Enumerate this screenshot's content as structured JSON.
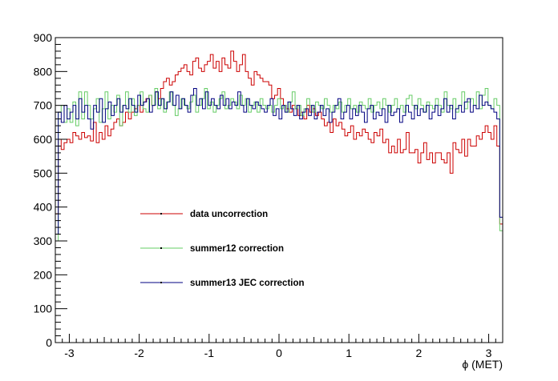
{
  "chart_data": {
    "type": "line",
    "style": "step-histogram",
    "title": "",
    "xlabel": "ϕ (MET)",
    "ylabel": "",
    "xlim": [
      -3.2,
      3.2
    ],
    "ylim": [
      0,
      900
    ],
    "x_ticks": [
      -3,
      -2,
      -1,
      0,
      1,
      2,
      3
    ],
    "y_ticks": [
      0,
      100,
      200,
      300,
      400,
      500,
      600,
      700,
      800,
      900
    ],
    "x_tick_labels": [
      "-3",
      "-2",
      "-1",
      "0",
      "1",
      "2",
      "3"
    ],
    "y_tick_labels": [
      "0",
      "100",
      "200",
      "300",
      "400",
      "500",
      "600",
      "700",
      "800",
      "900"
    ],
    "grid": false,
    "legend_position": "center-left",
    "series": [
      {
        "name": "data uncorrection",
        "color": "#cc0000",
        "values": [
          380,
          600,
          570,
          590,
          600,
          590,
          620,
          610,
          600,
          620,
          605,
          610,
          595,
          650,
          590,
          620,
          600,
          640,
          610,
          630,
          650,
          660,
          640,
          650,
          680,
          660,
          680,
          690,
          700,
          680,
          710,
          720,
          730,
          700,
          740,
          720,
          750,
          770,
          780,
          760,
          770,
          790,
          800,
          810,
          820,
          800,
          790,
          830,
          840,
          810,
          800,
          820,
          830,
          850,
          810,
          830,
          800,
          840,
          820,
          810,
          860,
          830,
          800,
          820,
          850,
          800,
          780,
          760,
          800,
          790,
          780,
          770,
          770,
          760,
          720,
          730,
          750,
          720,
          700,
          690,
          680,
          700,
          690,
          670,
          680,
          660,
          700,
          680,
          690,
          670,
          680,
          660,
          640,
          650,
          620,
          660,
          640,
          650,
          630,
          610,
          620,
          640,
          600,
          620,
          610,
          630,
          620,
          600,
          590,
          620,
          610,
          630,
          590,
          600,
          560,
          580,
          560,
          600,
          560,
          570,
          620,
          560,
          560,
          570,
          530,
          560,
          590,
          540,
          560,
          530,
          560,
          560,
          540,
          530,
          560,
          500,
          590,
          570,
          560,
          600,
          550,
          600,
          580,
          580,
          610,
          600,
          620,
          640,
          620,
          600,
          640,
          580,
          350
        ]
      },
      {
        "name": "summer12 correction",
        "color": "#66cc66",
        "values": [
          300,
          680,
          700,
          650,
          690,
          650,
          710,
          640,
          740,
          660,
          740,
          700,
          660,
          690,
          720,
          650,
          690,
          740,
          660,
          700,
          680,
          730,
          640,
          700,
          740,
          680,
          720,
          670,
          700,
          740,
          690,
          680,
          730,
          700,
          750,
          690,
          720,
          680,
          710,
          740,
          700,
          670,
          690,
          720,
          700,
          690,
          710,
          730,
          680,
          700,
          720,
          750,
          690,
          710,
          680,
          700,
          720,
          740,
          690,
          700,
          720,
          710,
          690,
          730,
          700,
          720,
          680,
          700,
          710,
          680,
          720,
          700,
          690,
          700,
          680,
          700,
          720,
          690,
          700,
          680,
          710,
          740,
          690,
          700,
          670,
          690,
          720,
          700,
          680,
          710,
          700,
          690,
          720,
          700,
          680,
          700,
          690,
          710,
          680,
          700,
          720,
          690,
          700,
          680,
          710,
          700,
          690,
          720,
          680,
          700,
          710,
          690,
          720,
          700,
          680,
          700,
          720,
          690,
          700,
          680,
          720,
          730,
          700,
          690,
          720,
          700,
          680,
          710,
          700,
          690,
          720,
          700,
          680,
          740,
          700,
          690,
          720,
          680,
          700,
          740,
          690,
          710,
          720,
          700,
          740,
          690,
          730,
          750,
          700,
          690,
          720,
          700,
          330
        ]
      },
      {
        "name": "summer13 JEC correction",
        "color": "#000080",
        "values": [
          320,
          680,
          650,
          700,
          660,
          680,
          700,
          660,
          720,
          680,
          700,
          660,
          630,
          700,
          680,
          720,
          650,
          690,
          710,
          670,
          700,
          720,
          680,
          700,
          690,
          720,
          700,
          680,
          730,
          700,
          710,
          720,
          680,
          700,
          740,
          700,
          720,
          690,
          710,
          740,
          700,
          730,
          690,
          720,
          700,
          680,
          730,
          750,
          700,
          720,
          690,
          740,
          700,
          720,
          700,
          690,
          730,
          700,
          720,
          690,
          710,
          700,
          740,
          700,
          680,
          720,
          700,
          690,
          710,
          700,
          690,
          680,
          700,
          720,
          670,
          690,
          660,
          700,
          680,
          710,
          690,
          670,
          700,
          660,
          680,
          690,
          670,
          700,
          660,
          680,
          700,
          670,
          690,
          650,
          680,
          700,
          720,
          660,
          680,
          700,
          660,
          690,
          670,
          700,
          680,
          650,
          690,
          700,
          660,
          680,
          670,
          690,
          650,
          700,
          670,
          680,
          690,
          650,
          670,
          700,
          680,
          660,
          700,
          670,
          690,
          680,
          700,
          660,
          680,
          700,
          670,
          690,
          720,
          680,
          700,
          660,
          690,
          700,
          680,
          710,
          720,
          680,
          700,
          690,
          730,
          700,
          710,
          700,
          690,
          680,
          660,
          370
        ]
      }
    ]
  }
}
